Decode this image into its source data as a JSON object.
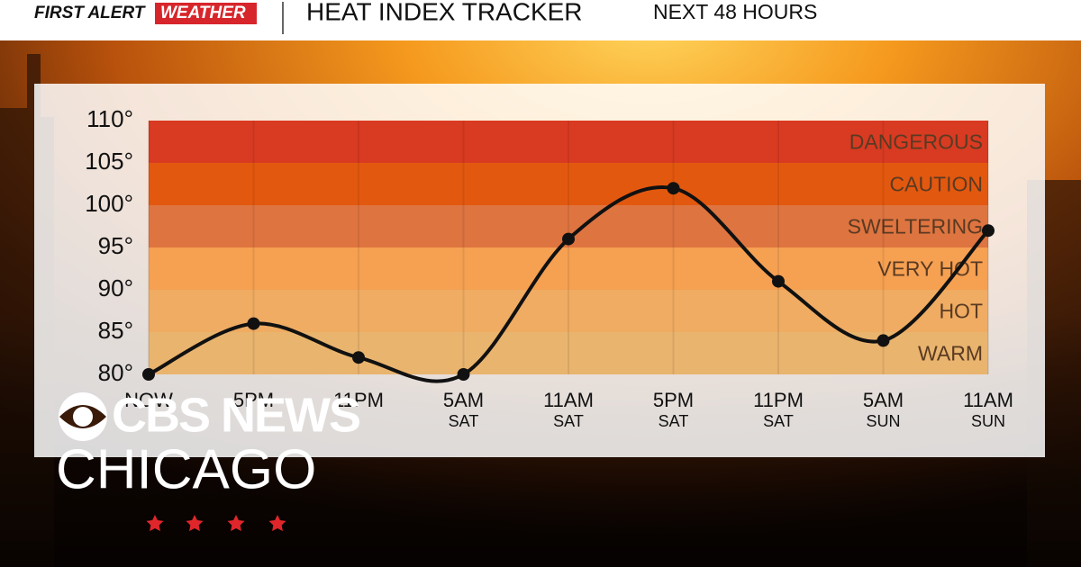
{
  "header": {
    "brand1": "FIRST ALERT",
    "brand2": "WEATHER"
  },
  "chart_data": {
    "type": "line",
    "title": "HEAT INDEX TRACKER",
    "subtitle": "NEXT 48 HOURS",
    "categories": [
      "NOW",
      "5PM",
      "11PM",
      "5AM",
      "11AM",
      "5PM",
      "11PM",
      "5AM",
      "11AM"
    ],
    "category_days": [
      null,
      null,
      null,
      "SAT",
      "SAT",
      "SAT",
      "SAT",
      "SUN",
      "SUN"
    ],
    "series": [
      {
        "name": null,
        "color": "#111111",
        "values": [
          80,
          86,
          82,
          80,
          96,
          102,
          91,
          84,
          97
        ]
      }
    ],
    "ylim": [
      80,
      110
    ],
    "yticks": [
      {
        "value": 110,
        "label": "110°"
      },
      {
        "value": 105,
        "label": "105°"
      },
      {
        "value": 100,
        "label": "100°"
      },
      {
        "value": 95,
        "label": "95°"
      },
      {
        "value": 90,
        "label": "90°"
      },
      {
        "value": 85,
        "label": "85°"
      },
      {
        "value": 80,
        "label": "80°"
      }
    ],
    "bands": [
      {
        "label": "WARM",
        "from": 80,
        "to": 85,
        "color": "#e9b46e"
      },
      {
        "label": "HOT",
        "from": 85,
        "to": 90,
        "color": "#efac62"
      },
      {
        "label": "VERY HOT",
        "from": 90,
        "to": 95,
        "color": "#f6a052"
      },
      {
        "label": "SWELTERING",
        "from": 95,
        "to": 100,
        "color": "#de7440"
      },
      {
        "label": "CAUTION",
        "from": 100,
        "to": 105,
        "color": "#e3580f"
      },
      {
        "label": "DANGEROUS",
        "from": 105,
        "to": 110,
        "color": "#d93a22"
      }
    ],
    "grid": true
  },
  "logo": {
    "line1": "CBS NEWS",
    "line2": "CHICAGO"
  }
}
